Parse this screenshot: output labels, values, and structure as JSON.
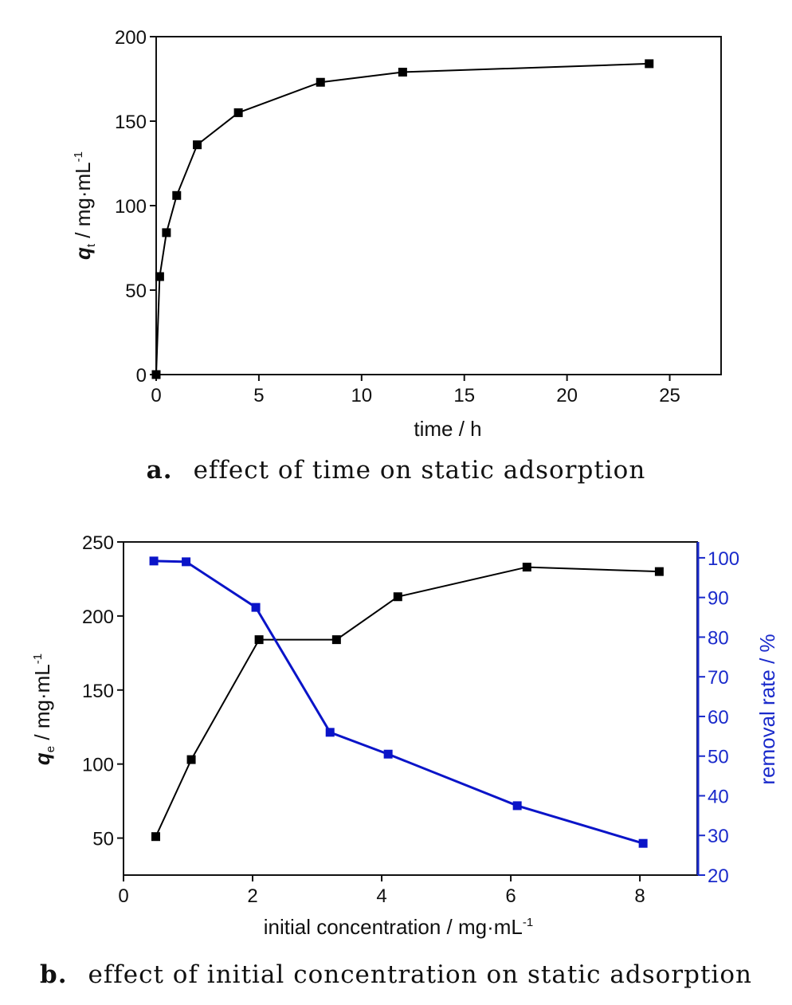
{
  "captions": {
    "a_label": "a.",
    "a_text": "effect of time on static adsorption",
    "b_label": "b.",
    "b_text": "effect of initial concentration on static adsorption"
  },
  "colors": {
    "black_series": "#000000",
    "blue_series": "#0a14c8",
    "right_axis": "#1a2acb"
  },
  "chart_data": [
    {
      "type": "line",
      "xlabel": "time / h",
      "ylabel": "q",
      "ylabel_sub": "t",
      "ylabel_rest": " / mg·mL",
      "ylabel_sup": "-1",
      "xlim": [
        0,
        27.5
      ],
      "ylim": [
        0,
        200
      ],
      "xticks": [
        0,
        5,
        10,
        15,
        20,
        25
      ],
      "yticks": [
        0,
        50,
        100,
        150,
        200
      ],
      "grid": false,
      "series": [
        {
          "color": "#000000",
          "marker": "square",
          "x": [
            0,
            0.17,
            0.5,
            1,
            2,
            4,
            8,
            12,
            24
          ],
          "y": [
            0,
            58,
            84,
            106,
            136,
            155,
            173,
            179,
            184
          ]
        }
      ]
    },
    {
      "type": "line",
      "xlabel": "initial concentration / mg·mL",
      "xlabel_sup": "-1",
      "ylabel": "q",
      "ylabel_sub": "e",
      "ylabel_rest": " / mg·mL",
      "ylabel_sup": "-1",
      "ylabel_right": "removal rate / %",
      "xlim": [
        0,
        8.9
      ],
      "ylim": [
        25,
        250
      ],
      "ylim_right": [
        20,
        104
      ],
      "xticks": [
        0,
        2,
        4,
        6,
        8
      ],
      "yticks": [
        50,
        100,
        150,
        200,
        250
      ],
      "yticks_right": [
        20,
        30,
        40,
        50,
        60,
        70,
        80,
        90,
        100
      ],
      "grid": false,
      "series": [
        {
          "axis": "left",
          "color": "#000000",
          "marker": "square",
          "x": [
            0.5,
            1.05,
            2.1,
            3.3,
            4.25,
            6.25,
            8.3
          ],
          "y": [
            51,
            103,
            184,
            184,
            213,
            233,
            230
          ]
        },
        {
          "axis": "right",
          "color": "#0a14c8",
          "marker": "square",
          "x": [
            0.47,
            0.97,
            2.05,
            3.2,
            4.1,
            6.1,
            8.05
          ],
          "y": [
            99.2,
            99,
            87.5,
            56,
            50.5,
            37.5,
            28
          ]
        }
      ]
    }
  ]
}
